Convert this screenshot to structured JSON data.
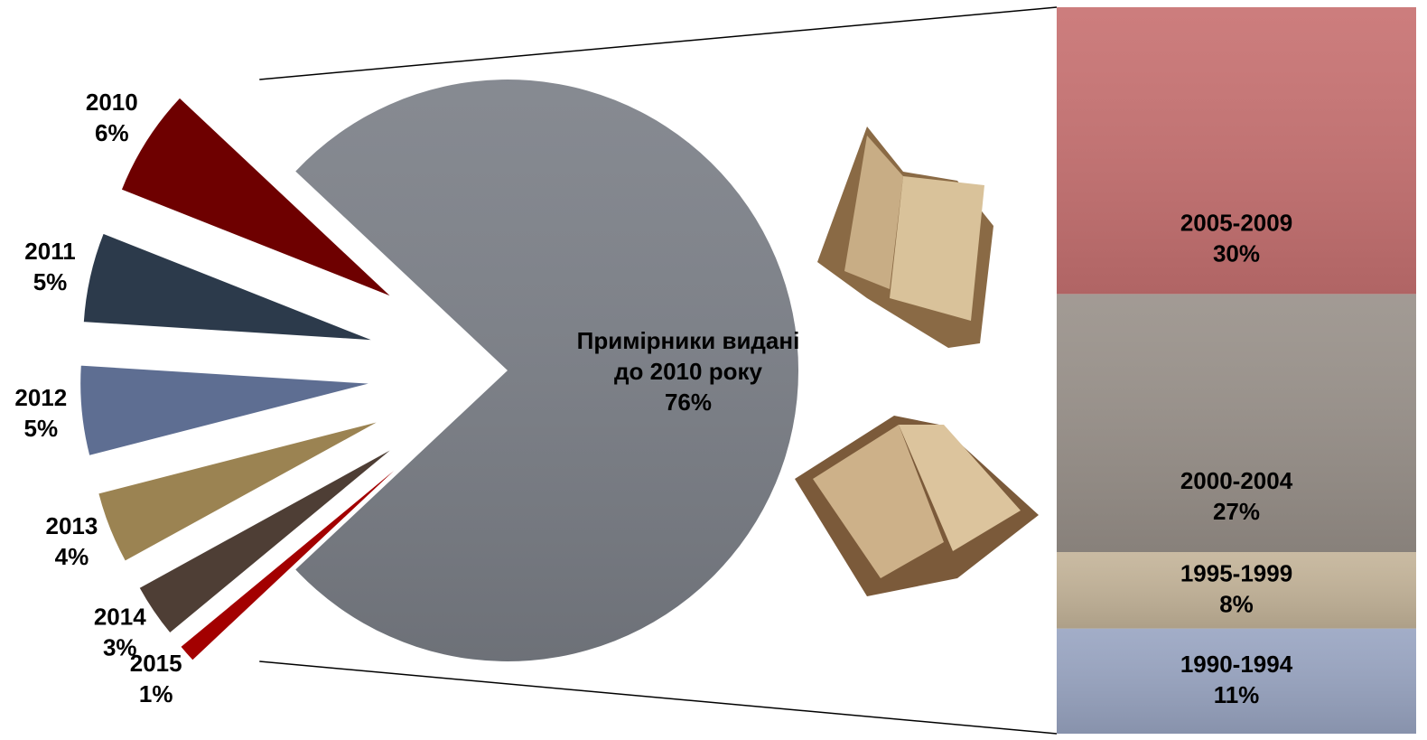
{
  "chart_data": [
    {
      "type": "pie",
      "categories": [
        "Примірники видані до 2010 року",
        "2010",
        "2011",
        "2012",
        "2013",
        "2014",
        "2015"
      ],
      "values": [
        76,
        6,
        5,
        5,
        4,
        3,
        1
      ],
      "value_labels": [
        "76%",
        "6%",
        "5%",
        "5%",
        "4%",
        "3%",
        "1%"
      ],
      "colors": [
        "#7c8088",
        "#6e0000",
        "#2c3a4b",
        "#5e6e92",
        "#9b8352",
        "#4e3e35",
        "#a30000"
      ]
    },
    {
      "type": "stacked-bar",
      "categories": [
        "1990-1994",
        "1995-1999",
        "2000-2004",
        "2005-2009"
      ],
      "values": [
        11,
        8,
        27,
        30
      ],
      "value_labels": [
        "11%",
        "8%",
        "27%",
        "30%"
      ],
      "colors": [
        "#9aa6c3",
        "#c5b59a",
        "#9a928b",
        "#c87272"
      ]
    }
  ]
}
